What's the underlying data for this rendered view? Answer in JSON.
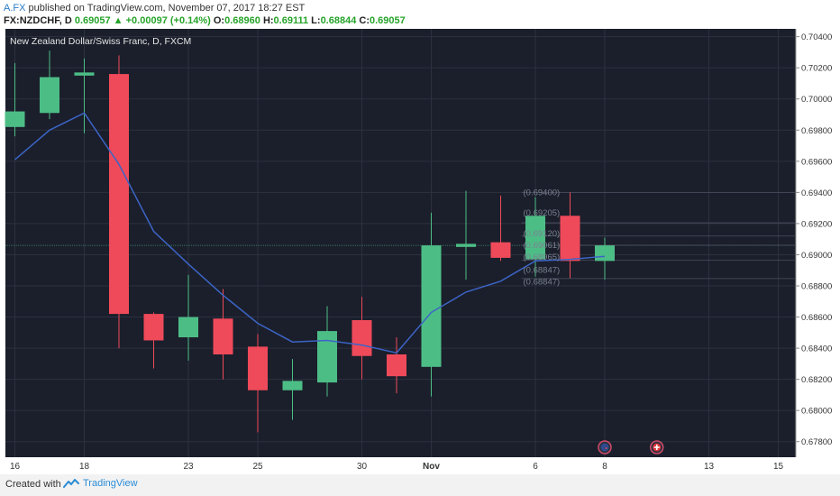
{
  "header": {
    "author": "A.FX",
    "published": "published on TradingView.com, November 07, 2017 18:27 EST",
    "symbol": "FX:NZDCHF, D",
    "last": "0.69057",
    "arrow": "▲",
    "change": "+0.00097 (+0.14%)",
    "o_label": "O:",
    "o_value": "0.68960",
    "h_label": "H:",
    "h_value": "0.69111",
    "l_label": "L:",
    "l_value": "0.68844",
    "c_label": "C:",
    "c_value": "0.69057"
  },
  "footer": {
    "created": "Created with",
    "brand": "TradingView"
  },
  "colors": {
    "background": "#1b1f2b",
    "up": "#4dbd86",
    "down": "#ef4a5a",
    "ma": "#3c64c6",
    "grid": "#2c3140",
    "axis_text": "#333333"
  },
  "chart_data": {
    "type": "candlestick",
    "title": "New Zealand Dollar/Swiss Franc, D, FXCM",
    "ylim": [
      0.677,
      0.7045
    ],
    "y_ticks": [
      "0.70400",
      "0.70200",
      "0.70000",
      "0.69800",
      "0.69600",
      "0.69400",
      "0.69200",
      "0.69000",
      "0.68800",
      "0.68600",
      "0.68400",
      "0.68200",
      "0.68000",
      "0.67800"
    ],
    "x_ticks": [
      {
        "label": "16",
        "day": 0,
        "bold": false
      },
      {
        "label": "18",
        "day": 2,
        "bold": false
      },
      {
        "label": "23",
        "day": 5,
        "bold": false
      },
      {
        "label": "25",
        "day": 7,
        "bold": false
      },
      {
        "label": "30",
        "day": 10,
        "bold": false
      },
      {
        "label": "Nov",
        "day": 12,
        "bold": true
      },
      {
        "label": "6",
        "day": 15,
        "bold": false
      },
      {
        "label": "8",
        "day": 17,
        "bold": false
      },
      {
        "label": "13",
        "day": 20,
        "bold": false
      },
      {
        "label": "15",
        "day": 22,
        "bold": false
      }
    ],
    "candles": [
      {
        "day": 0,
        "o": 0.6982,
        "h": 0.7023,
        "l": 0.6976,
        "c": 0.6992
      },
      {
        "day": 1,
        "o": 0.6991,
        "h": 0.7031,
        "l": 0.6987,
        "c": 0.7014
      },
      {
        "day": 2,
        "o": 0.7015,
        "h": 0.7026,
        "l": 0.6978,
        "c": 0.7017
      },
      {
        "day": 3,
        "o": 0.7016,
        "h": 0.7028,
        "l": 0.684,
        "c": 0.6862
      },
      {
        "day": 4,
        "o": 0.6862,
        "h": 0.6863,
        "l": 0.6827,
        "c": 0.6845
      },
      {
        "day": 5,
        "o": 0.6847,
        "h": 0.6887,
        "l": 0.6832,
        "c": 0.686
      },
      {
        "day": 6,
        "o": 0.6859,
        "h": 0.6878,
        "l": 0.682,
        "c": 0.6836
      },
      {
        "day": 7,
        "o": 0.6841,
        "h": 0.6849,
        "l": 0.6786,
        "c": 0.6813
      },
      {
        "day": 8,
        "o": 0.6813,
        "h": 0.6833,
        "l": 0.6794,
        "c": 0.6819
      },
      {
        "day": 9,
        "o": 0.6818,
        "h": 0.6867,
        "l": 0.6809,
        "c": 0.6851
      },
      {
        "day": 10,
        "o": 0.6858,
        "h": 0.6873,
        "l": 0.682,
        "c": 0.6835
      },
      {
        "day": 11,
        "o": 0.6836,
        "h": 0.6847,
        "l": 0.6811,
        "c": 0.6822
      },
      {
        "day": 12,
        "o": 0.6828,
        "h": 0.6927,
        "l": 0.6809,
        "c": 0.6906
      },
      {
        "day": 13,
        "o": 0.6905,
        "h": 0.6941,
        "l": 0.6884,
        "c": 0.6907
      },
      {
        "day": 14,
        "o": 0.6908,
        "h": 0.6938,
        "l": 0.6896,
        "c": 0.6898
      },
      {
        "day": 15,
        "o": 0.6897,
        "h": 0.6937,
        "l": 0.6886,
        "c": 0.6925
      },
      {
        "day": 16,
        "o": 0.6925,
        "h": 0.694,
        "l": 0.6885,
        "c": 0.6896
      },
      {
        "day": 17,
        "o": 0.6896,
        "h": 0.6911,
        "l": 0.6884,
        "c": 0.6906
      }
    ],
    "ma": [
      {
        "day": 0,
        "v": 0.6961
      },
      {
        "day": 1,
        "v": 0.698
      },
      {
        "day": 2,
        "v": 0.6991
      },
      {
        "day": 3,
        "v": 0.6958
      },
      {
        "day": 4,
        "v": 0.6915
      },
      {
        "day": 5,
        "v": 0.6894
      },
      {
        "day": 6,
        "v": 0.6874
      },
      {
        "day": 7,
        "v": 0.6856
      },
      {
        "day": 8,
        "v": 0.6844
      },
      {
        "day": 9,
        "v": 0.6845
      },
      {
        "day": 10,
        "v": 0.6842
      },
      {
        "day": 11,
        "v": 0.6837
      },
      {
        "day": 12,
        "v": 0.6863
      },
      {
        "day": 13,
        "v": 0.6876
      },
      {
        "day": 14,
        "v": 0.6883
      },
      {
        "day": 15,
        "v": 0.6896
      },
      {
        "day": 16,
        "v": 0.6897
      },
      {
        "day": 17,
        "v": 0.6899
      }
    ],
    "hlines": [
      0.694,
      0.69205,
      0.6912,
      0.69061,
      0.68965,
      0.68847
    ],
    "price_labels": [
      {
        "text": "(0.69400)",
        "v": 0.694
      },
      {
        "text": "(0.69205)",
        "v": 0.6927
      },
      {
        "text": "(0.69120)",
        "v": 0.69135
      },
      {
        "text": "(0.69061)",
        "v": 0.6906
      },
      {
        "text": "(0.68965)",
        "v": 0.68985
      },
      {
        "text": "(0.68847)",
        "v": 0.689
      },
      {
        "text": "(0.68847)",
        "v": 0.68825
      }
    ],
    "events": [
      {
        "day": 17,
        "type": "flag",
        "name": "nz-flag-icon"
      },
      {
        "day": 18.5,
        "type": "flag",
        "name": "ch-flag-icon"
      }
    ]
  }
}
